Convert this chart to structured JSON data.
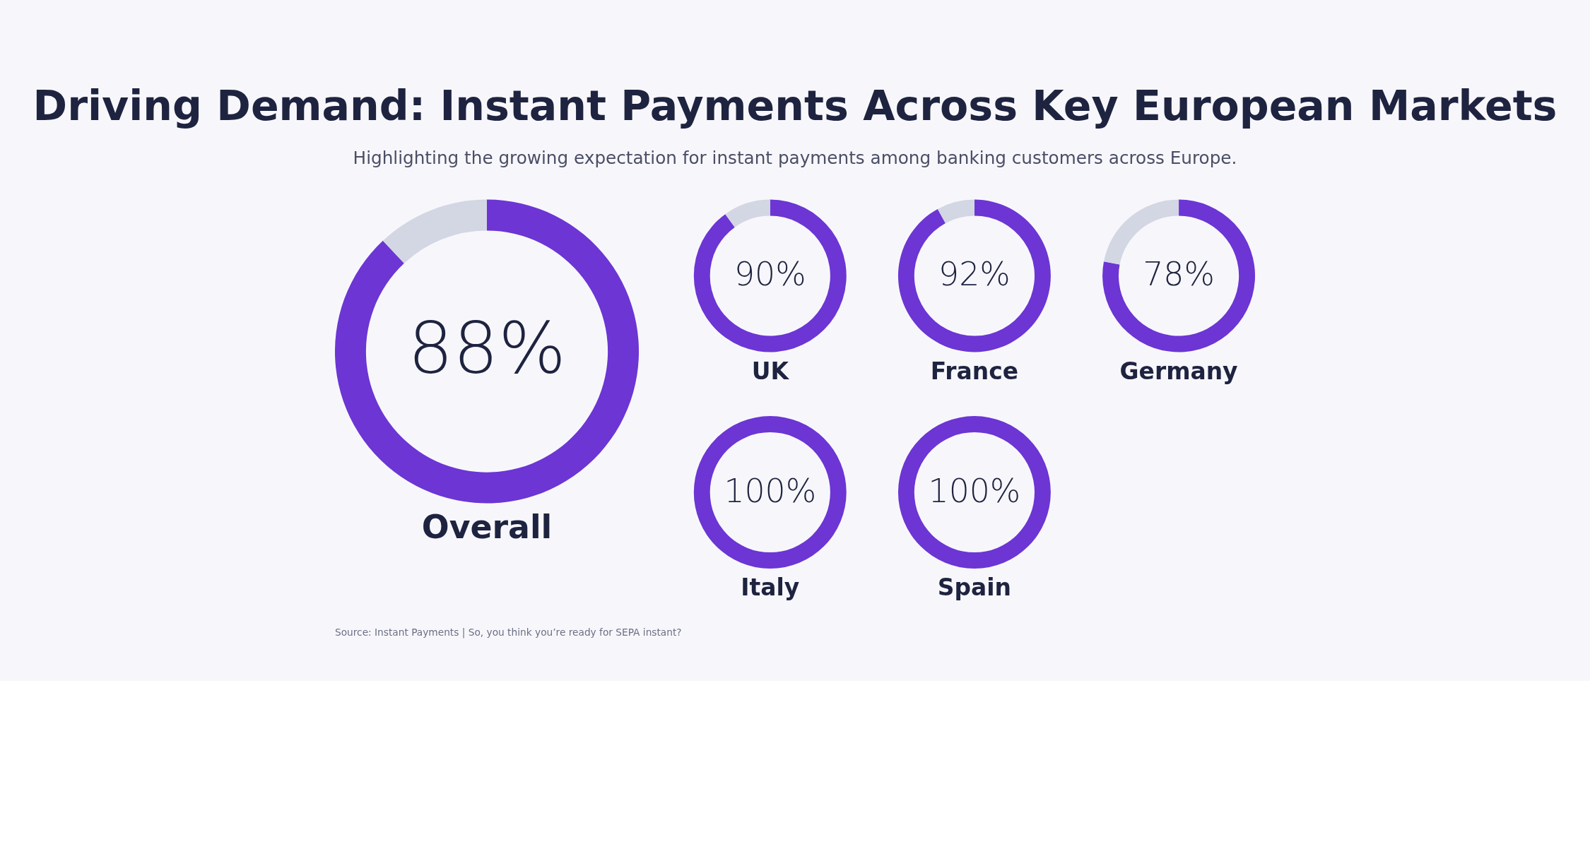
{
  "chart_data": [
    {
      "type": "other",
      "title": "Driving Demand: Instant Payments Across Key European Markets",
      "subtitle": "Highlighting the growing expectation for instant payments among banking customers across Europe.",
      "annotations": [
        "Source: Instant Payments | So, you think you’re ready for SEPA instant?"
      ]
    },
    {
      "type": "donut",
      "xlabel": "Overall",
      "categories": [
        null,
        null
      ],
      "values": [
        88,
        12
      ],
      "colors": [
        "#6c35d4",
        "#d3d6e3"
      ],
      "value_labels": [
        "88%",
        null
      ]
    },
    {
      "type": "donut",
      "xlabel": "UK",
      "categories": [
        null,
        null
      ],
      "values": [
        90,
        10
      ],
      "colors": [
        "#6c35d4",
        "#d3d6e3"
      ],
      "value_labels": [
        "90%",
        null
      ]
    },
    {
      "type": "donut",
      "xlabel": "France",
      "categories": [
        null,
        null
      ],
      "values": [
        92,
        8
      ],
      "colors": [
        "#6c35d4",
        "#d3d6e3"
      ],
      "value_labels": [
        "92%",
        null
      ]
    },
    {
      "type": "donut",
      "xlabel": "Germany",
      "categories": [
        null,
        null
      ],
      "values": [
        78,
        22
      ],
      "colors": [
        "#6c35d4",
        "#d3d6e3"
      ],
      "value_labels": [
        "78%",
        null
      ]
    },
    {
      "type": "donut",
      "xlabel": "Italy",
      "categories": [
        null
      ],
      "values": [
        100
      ],
      "colors": [
        "#6c35d4"
      ],
      "value_labels": [
        "100%"
      ]
    },
    {
      "type": "donut",
      "xlabel": "Spain",
      "categories": [
        null
      ],
      "values": [
        100
      ],
      "colors": [
        "#6c35d4"
      ],
      "value_labels": [
        "100%"
      ]
    }
  ]
}
